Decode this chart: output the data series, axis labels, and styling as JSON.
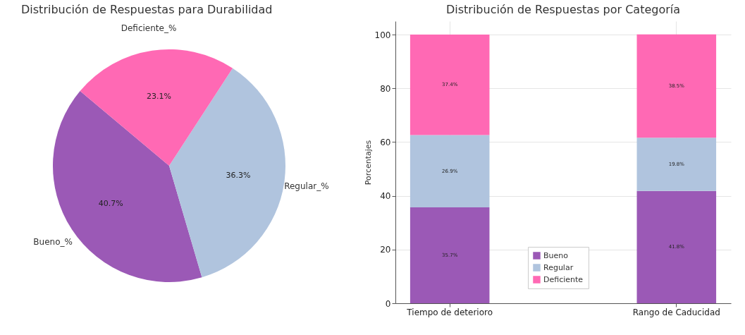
{
  "chart_data": [
    {
      "type": "pie",
      "title": "Distribución de Respuestas para Durabilidad",
      "categories": [
        "Bueno_%",
        "Regular_%",
        "Deficiente_%"
      ],
      "values": [
        40.7,
        36.3,
        23.1
      ],
      "colors": [
        "#9b59b6",
        "#b0c4de",
        "#ff69b4"
      ],
      "value_labels": [
        "40.7%",
        "36.3%",
        "23.1%"
      ]
    },
    {
      "type": "bar",
      "stacked": true,
      "title": "Distribución de Respuestas por Categoría",
      "ylabel": "Porcentajes",
      "categories": [
        "Tiempo de deterioro",
        "Rango de Caducidad"
      ],
      "series": [
        {
          "name": "Bueno",
          "color": "#9b59b6",
          "values": [
            35.7,
            41.8
          ],
          "value_labels": [
            "35.7%",
            "41.8%"
          ]
        },
        {
          "name": "Regular",
          "color": "#b0c4de",
          "values": [
            26.9,
            19.8
          ],
          "value_labels": [
            "26.9%",
            "19.8%"
          ]
        },
        {
          "name": "Deficiente",
          "color": "#ff69b4",
          "values": [
            37.4,
            38.5
          ],
          "value_labels": [
            "37.4%",
            "38.5%"
          ]
        }
      ],
      "ylim": [
        0,
        105
      ],
      "yticks": [
        0,
        20,
        40,
        60,
        80,
        100
      ],
      "grid": true,
      "legend": "bottom"
    }
  ]
}
